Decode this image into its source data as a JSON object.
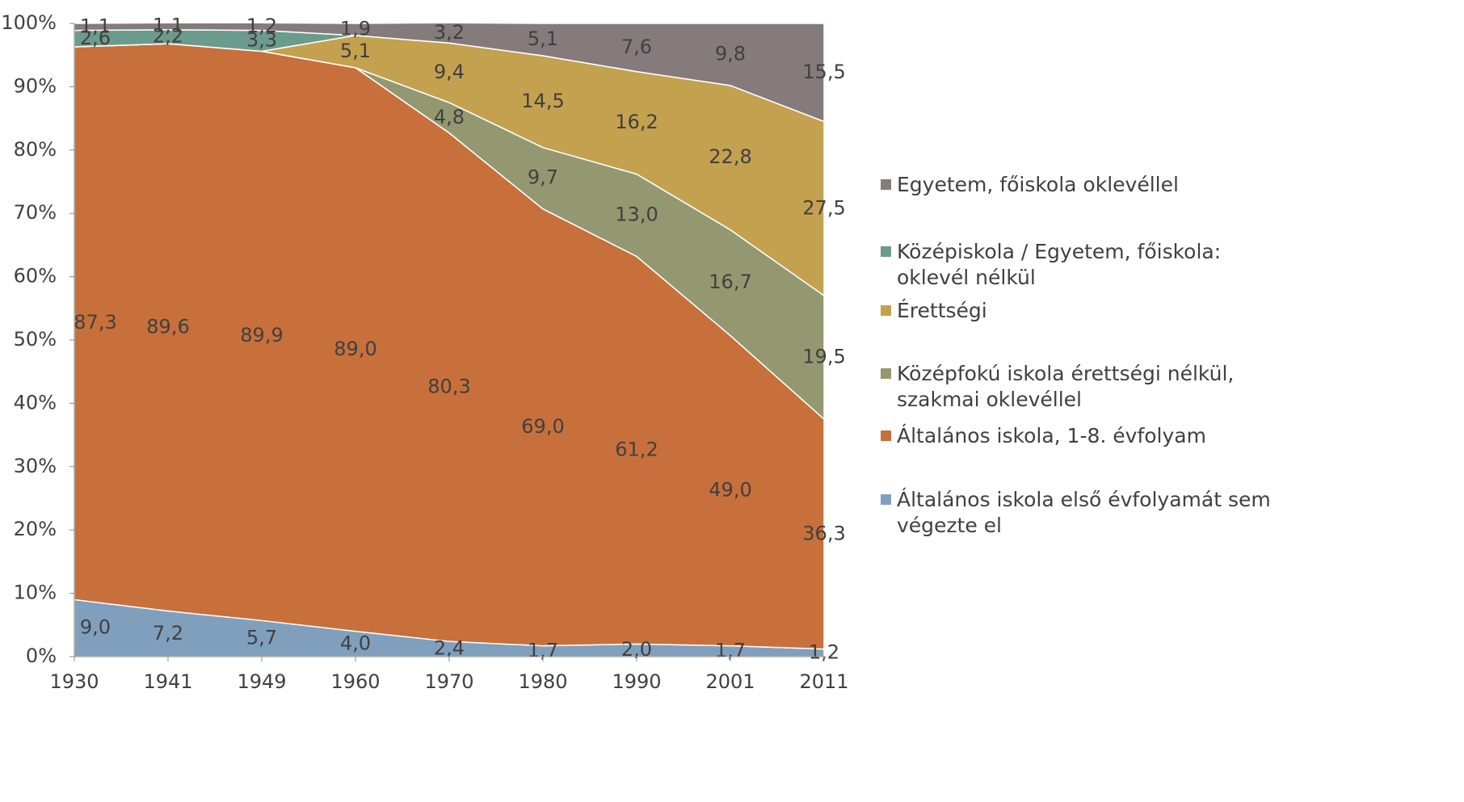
{
  "chart_data": {
    "type": "stacked_area",
    "categories": [
      "1930",
      "1941",
      "1949",
      "1960",
      "1970",
      "1980",
      "1990",
      "2001",
      "2011"
    ],
    "series": [
      {
        "name": "Általános iskola első évfolyamát sem végezte el",
        "color": "#809fbd",
        "values": [
          9.0,
          7.2,
          5.7,
          4.0,
          2.4,
          1.7,
          2.0,
          1.7,
          1.2
        ],
        "value_labels": [
          "9,0",
          "7,2",
          "5,7",
          "4,0",
          "2,4",
          "1,7",
          "2,0",
          "1,7",
          "1,2"
        ]
      },
      {
        "name": "Általános iskola, 1-8. évfolyam",
        "color": "#c8703b",
        "values": [
          87.3,
          89.6,
          89.9,
          89.0,
          80.3,
          69.0,
          61.2,
          49.0,
          36.3
        ],
        "value_labels": [
          "87,3",
          "89,6",
          "89,9",
          "89,0",
          "80,3",
          "69,0",
          "61,2",
          "49,0",
          "36,3"
        ]
      },
      {
        "name": "Középfokú iskola érettségi nélkül, szakmai oklevéllel",
        "color": "#939870",
        "values": [
          0,
          0,
          0,
          0,
          4.8,
          9.7,
          13.0,
          16.7,
          19.5
        ],
        "value_labels": [
          null,
          null,
          null,
          null,
          "4,8",
          "9,7",
          "13,0",
          "16,7",
          "19,5"
        ]
      },
      {
        "name": "Érettségi",
        "color": "#c4a14f",
        "values": [
          0,
          0,
          0,
          5.1,
          9.4,
          14.5,
          16.2,
          22.8,
          27.5
        ],
        "value_labels": [
          null,
          null,
          null,
          "5,1",
          "9,4",
          "14,5",
          "16,2",
          "22,8",
          "27,5"
        ]
      },
      {
        "name": "Középiskola / Egyetem, főiskola: oklevél nélkül",
        "color": "#6b9b8c",
        "values": [
          2.6,
          2.2,
          3.3,
          0,
          0,
          0,
          0,
          0,
          0
        ],
        "value_labels": [
          "2,6",
          "2,2",
          "3,3",
          null,
          null,
          null,
          null,
          null,
          null
        ]
      },
      {
        "name": "Egyetem, főiskola oklevéllel",
        "color": "#857b7b",
        "values": [
          1.1,
          1.1,
          1.2,
          1.9,
          3.2,
          5.1,
          7.6,
          9.8,
          15.5
        ],
        "value_labels": [
          "1,1",
          "1,1",
          "1,2",
          "1,9",
          "3,2",
          "5,1",
          "7,6",
          "9,8",
          "15,5"
        ]
      }
    ],
    "ylim": [
      0,
      100
    ],
    "yticks": [
      {
        "value": 0,
        "label": "0%"
      },
      {
        "value": 10,
        "label": "10%"
      },
      {
        "value": 20,
        "label": "20%"
      },
      {
        "value": 30,
        "label": "30%"
      },
      {
        "value": 40,
        "label": "40%"
      },
      {
        "value": 50,
        "label": "50%"
      },
      {
        "value": 60,
        "label": "60%"
      },
      {
        "value": 70,
        "label": "70%"
      },
      {
        "value": 80,
        "label": "80%"
      },
      {
        "value": 90,
        "label": "90%"
      },
      {
        "value": 100,
        "label": "100%"
      }
    ],
    "legend": "right"
  }
}
